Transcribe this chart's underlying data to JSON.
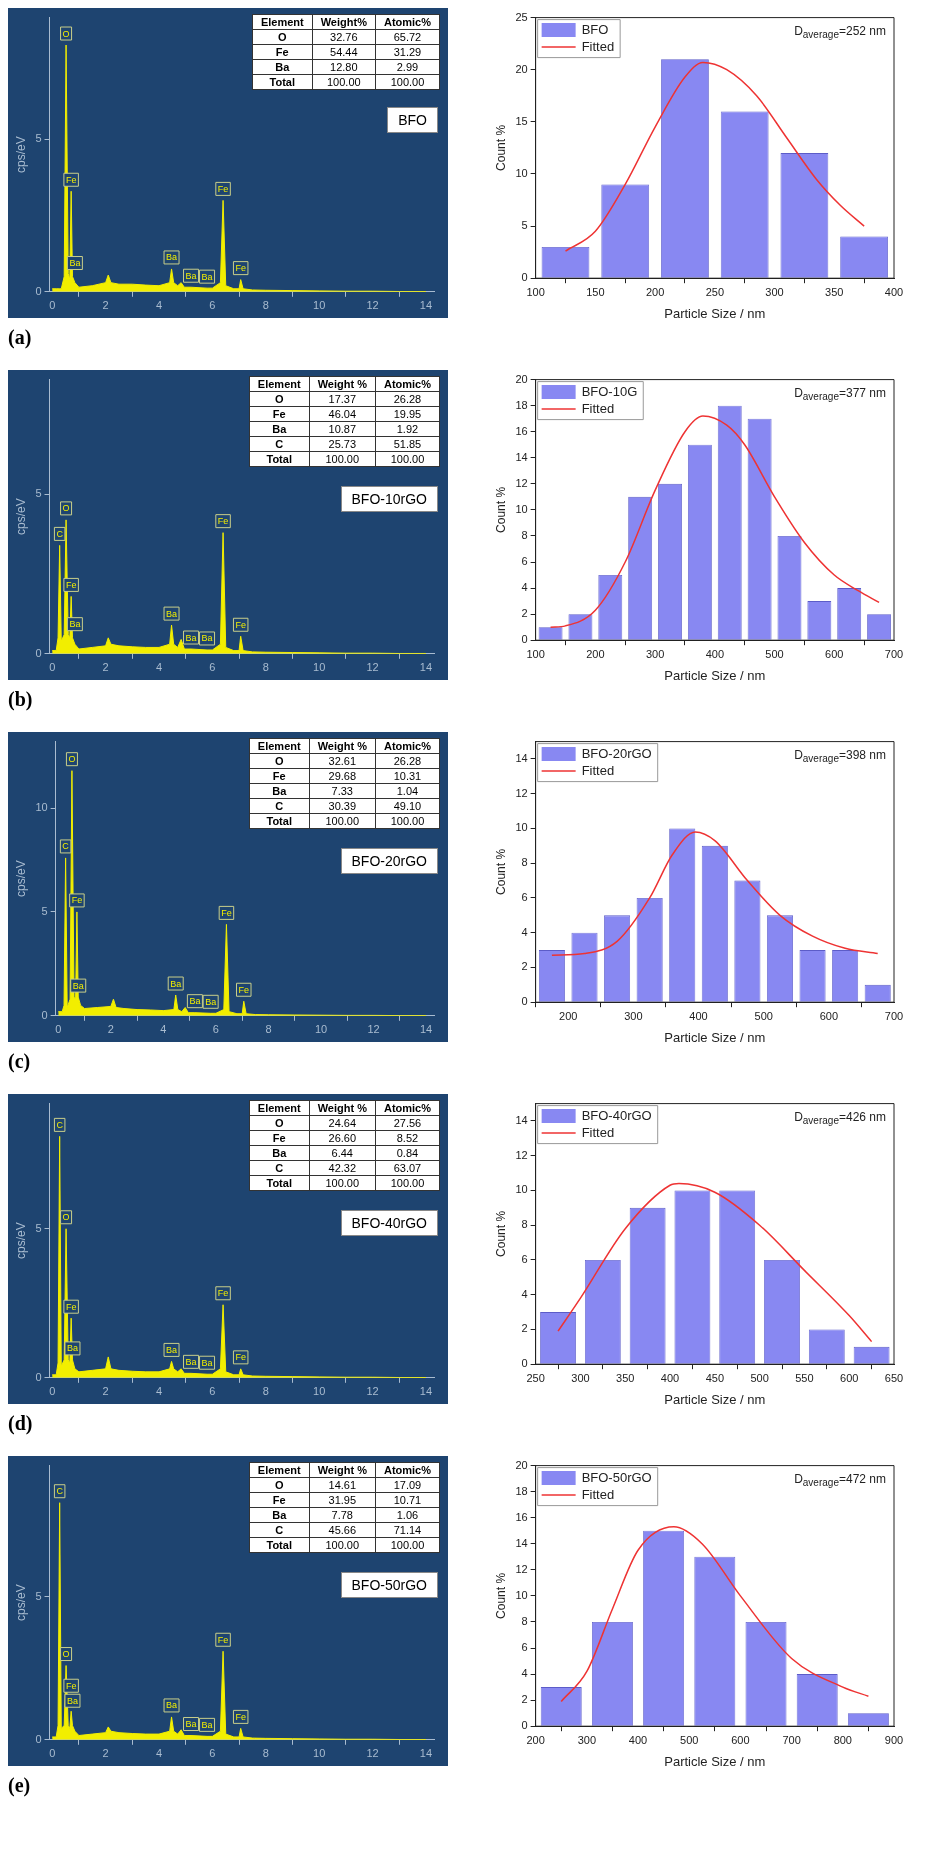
{
  "chart_data": [
    {
      "type": "area",
      "marker": "none",
      "ylabel": "cps/eV",
      "xlim": [
        -0.1,
        14.3
      ],
      "xticks": [
        0,
        2,
        4,
        6,
        8,
        10,
        12,
        14
      ],
      "ylim": [
        0,
        9
      ],
      "yticks": [
        0,
        5
      ],
      "x": [
        0,
        0.15,
        0.22,
        0.28,
        0.34,
        0.45,
        0.52,
        0.6,
        0.66,
        0.71,
        0.76,
        0.85,
        1.0,
        1.5,
        2.0,
        2.1,
        2.2,
        2.5,
        3.0,
        3.5,
        4.0,
        4.4,
        4.47,
        4.55,
        4.7,
        4.83,
        4.95,
        5.2,
        5.8,
        6.0,
        6.3,
        6.4,
        6.5,
        6.8,
        7.0,
        7.06,
        7.15,
        7.5,
        8,
        9,
        10,
        11,
        12,
        13,
        14
      ],
      "series": [
        {
          "color": "#f2ee00",
          "values": [
            0.1,
            0.1,
            0.1,
            0.1,
            0.1,
            0.5,
            8.1,
            0.6,
            0.4,
            3.3,
            0.5,
            0.3,
            0.15,
            0.2,
            0.3,
            0.55,
            0.3,
            0.25,
            0.25,
            0.22,
            0.2,
            0.3,
            0.75,
            0.3,
            0.2,
            0.3,
            0.15,
            0.15,
            0.12,
            0.12,
            0.3,
            3.0,
            0.2,
            0.1,
            0.1,
            0.4,
            0.1,
            0.06,
            0.05,
            0.04,
            0.03,
            0.02,
            0.02,
            0.01,
            0.01
          ]
        }
      ],
      "annotations": [
        {
          "text": "O",
          "x": 0.52,
          "y": 8.1
        },
        {
          "text": "Fe",
          "x": 0.71,
          "y": 3.3
        },
        {
          "text": "Ba",
          "x": 0.85,
          "y": 0.3
        },
        {
          "text": "Ba",
          "x": 4.47,
          "y": 0.75
        },
        {
          "text": "Ba",
          "x": 5.2,
          "y": 0.15
        },
        {
          "text": "Ba",
          "x": 5.8,
          "y": 0.12
        },
        {
          "text": "Fe",
          "x": 6.4,
          "y": 3.0
        },
        {
          "text": "Fe",
          "x": 7.06,
          "y": 0.4
        },
        "Element",
        "Weight%",
        "Atomic%",
        "O",
        "32.76",
        "65.72",
        "Fe",
        "54.44",
        "31.29",
        "Ba",
        "12.80",
        "2.99",
        "Total",
        "100.00",
        "100.00",
        "BFO",
        "(a)"
      ]
    },
    {
      "type": "histogram",
      "marker": "none",
      "xlabel": "Particle Size / nm",
      "ylabel": "Count %",
      "legend": "top left",
      "bins": [
        100,
        150,
        200,
        250,
        300,
        350,
        400
      ],
      "xlim": [
        100,
        400
      ],
      "xticks": [
        100,
        150,
        200,
        250,
        300,
        350,
        400
      ],
      "ylim": [
        0,
        25
      ],
      "yticks": [
        0,
        5,
        10,
        15,
        20,
        25
      ],
      "series": [
        {
          "name": "BFO",
          "color": "#8888f2",
          "values": [
            3,
            9,
            21,
            16,
            12,
            4
          ]
        },
        {
          "name": "Fitted",
          "type": "line",
          "color": "#ee3333",
          "x": [
            125,
            150,
            175,
            200,
            225,
            240,
            260,
            285,
            310,
            335,
            355,
            375
          ],
          "values": [
            2.6,
            4.5,
            9,
            14.5,
            19.3,
            20.7,
            20,
            17.5,
            13.5,
            9.5,
            7,
            5
          ]
        }
      ],
      "annotations": [
        "D$_{average}$=252 nm"
      ]
    },
    {
      "type": "area",
      "marker": "none",
      "ylabel": "cps/eV",
      "xlim": [
        -0.1,
        14.3
      ],
      "xticks": [
        0,
        2,
        4,
        6,
        8,
        10,
        12,
        14
      ],
      "ylim": [
        0,
        8.6
      ],
      "yticks": [
        0,
        5
      ],
      "x": [
        0,
        0.15,
        0.22,
        0.28,
        0.34,
        0.45,
        0.52,
        0.6,
        0.66,
        0.71,
        0.76,
        0.85,
        1.0,
        1.5,
        2.0,
        2.1,
        2.2,
        2.5,
        3.0,
        3.5,
        4.0,
        4.4,
        4.47,
        4.55,
        4.7,
        4.83,
        4.95,
        5.2,
        5.8,
        6.0,
        6.3,
        6.4,
        6.5,
        6.8,
        7.0,
        7.06,
        7.15,
        7.5,
        8,
        9,
        10,
        11,
        12,
        13,
        14
      ],
      "series": [
        {
          "color": "#f2ee00",
          "values": [
            0.1,
            0.1,
            0.5,
            3.4,
            0.4,
            0.6,
            4.2,
            0.6,
            0.5,
            1.8,
            0.5,
            0.3,
            0.15,
            0.2,
            0.25,
            0.5,
            0.3,
            0.25,
            0.22,
            0.2,
            0.2,
            0.3,
            0.9,
            0.3,
            0.2,
            0.45,
            0.15,
            0.15,
            0.12,
            0.12,
            0.3,
            3.8,
            0.2,
            0.1,
            0.1,
            0.55,
            0.1,
            0.06,
            0.05,
            0.04,
            0.03,
            0.02,
            0.02,
            0.01,
            0.01
          ]
        }
      ],
      "annotations": [
        {
          "text": "C",
          "x": 0.28,
          "y": 3.4
        },
        {
          "text": "O",
          "x": 0.52,
          "y": 4.2
        },
        {
          "text": "Fe",
          "x": 0.71,
          "y": 1.8
        },
        {
          "text": "Ba",
          "x": 0.85,
          "y": 0.3
        },
        {
          "text": "Ba",
          "x": 4.47,
          "y": 0.9
        },
        {
          "text": "Ba",
          "x": 5.2,
          "y": 0.15
        },
        {
          "text": "Ba",
          "x": 5.8,
          "y": 0.12
        },
        {
          "text": "Fe",
          "x": 6.4,
          "y": 3.8
        },
        {
          "text": "Fe",
          "x": 7.06,
          "y": 0.55
        },
        "Element",
        "Weight %",
        "Atomic%",
        "O",
        "17.37",
        "26.28",
        "Fe",
        "46.04",
        "19.95",
        "Ba",
        "10.87",
        "1.92",
        "C",
        "25.73",
        "51.85",
        "Total",
        "100.00",
        "100.00",
        "BFO-10rGO",
        "(b)"
      ]
    },
    {
      "type": "histogram",
      "marker": "none",
      "xlabel": "Particle Size / nm",
      "ylabel": "Count %",
      "legend": "top left",
      "bins": [
        100,
        150,
        200,
        250,
        300,
        350,
        400,
        450,
        500,
        550,
        600,
        650,
        700
      ],
      "xlim": [
        100,
        700
      ],
      "xticks": [
        100,
        200,
        300,
        400,
        500,
        600,
        700
      ],
      "ylim": [
        0,
        20
      ],
      "yticks": [
        0,
        2,
        4,
        6,
        8,
        10,
        12,
        14,
        16,
        18,
        20
      ],
      "series": [
        {
          "name": "BFO-10G",
          "color": "#8888f2",
          "values": [
            1,
            2,
            5,
            11,
            12,
            15,
            18,
            17,
            8,
            3,
            4,
            2
          ]
        },
        {
          "name": "Fitted",
          "type": "line",
          "color": "#ee3333",
          "x": [
            125,
            150,
            200,
            250,
            300,
            350,
            380,
            420,
            450,
            500,
            550,
            600,
            640,
            675
          ],
          "values": [
            1.0,
            1.1,
            2.3,
            6,
            11.5,
            16,
            17.2,
            16.5,
            15,
            11,
            7.5,
            5,
            3.8,
            2.9
          ]
        }
      ],
      "annotations": [
        "D$_{average}$=377 nm"
      ]
    },
    {
      "type": "area",
      "marker": "none",
      "ylabel": "cps/eV",
      "xlim": [
        -0.1,
        14.3
      ],
      "xticks": [
        0,
        2,
        4,
        6,
        8,
        10,
        12,
        14
      ],
      "ylim": [
        0,
        13.2
      ],
      "yticks": [
        0,
        5,
        10
      ],
      "x": [
        0,
        0.15,
        0.22,
        0.28,
        0.34,
        0.45,
        0.52,
        0.6,
        0.66,
        0.71,
        0.76,
        0.85,
        1.0,
        1.5,
        2.0,
        2.1,
        2.2,
        2.5,
        3.0,
        3.5,
        4.0,
        4.4,
        4.47,
        4.55,
        4.7,
        4.83,
        4.95,
        5.2,
        5.8,
        6.0,
        6.3,
        6.4,
        6.5,
        6.8,
        7.0,
        7.06,
        7.15,
        7.5,
        8,
        9,
        10,
        11,
        12,
        13,
        14
      ],
      "series": [
        {
          "color": "#f2ee00",
          "values": [
            0.2,
            0.2,
            0.5,
            7.6,
            0.4,
            0.8,
            11.8,
            0.9,
            0.8,
            5.0,
            0.9,
            0.5,
            0.35,
            0.4,
            0.45,
            0.8,
            0.4,
            0.35,
            0.3,
            0.28,
            0.25,
            0.3,
            1.0,
            0.3,
            0.2,
            0.4,
            0.15,
            0.15,
            0.12,
            0.12,
            0.3,
            4.4,
            0.2,
            0.1,
            0.1,
            0.7,
            0.1,
            0.06,
            0.05,
            0.04,
            0.03,
            0.02,
            0.02,
            0.01,
            0.01
          ]
        }
      ],
      "annotations": [
        {
          "text": "C",
          "x": 0.28,
          "y": 7.6
        },
        {
          "text": "O",
          "x": 0.52,
          "y": 11.8
        },
        {
          "text": "Fe",
          "x": 0.71,
          "y": 5.0
        },
        {
          "text": "Ba",
          "x": 0.76,
          "y": 0.9
        },
        {
          "text": "Ba",
          "x": 4.47,
          "y": 1.0
        },
        {
          "text": "Ba",
          "x": 5.2,
          "y": 0.15
        },
        {
          "text": "Ba",
          "x": 5.8,
          "y": 0.12
        },
        {
          "text": "Fe",
          "x": 6.4,
          "y": 4.4
        },
        {
          "text": "Fe",
          "x": 7.06,
          "y": 0.7
        },
        "Element",
        "Weight %",
        "Atomic%",
        "O",
        "32.61",
        "26.28",
        "Fe",
        "29.68",
        "10.31",
        "Ba",
        "7.33",
        "1.04",
        "C",
        "30.39",
        "49.10",
        "Total",
        "100.00",
        "100.00",
        "BFO-20rGO",
        "(c)"
      ]
    },
    {
      "type": "histogram",
      "marker": "none",
      "xlabel": "Particle Size / nm",
      "ylabel": "Count %",
      "legend": "top left",
      "bins": [
        150,
        200,
        250,
        300,
        350,
        400,
        450,
        500,
        550,
        600,
        650,
        700
      ],
      "xlim": [
        150,
        700
      ],
      "xticks": [
        200,
        300,
        400,
        500,
        600,
        700
      ],
      "ylim": [
        0,
        15
      ],
      "yticks": [
        0,
        2,
        4,
        6,
        8,
        10,
        12,
        14
      ],
      "series": [
        {
          "name": "BFO-20rGO",
          "color": "#8888f2",
          "values": [
            3,
            4,
            5,
            6,
            10,
            9,
            7,
            5,
            3,
            3,
            1
          ]
        },
        {
          "name": "Fitted",
          "type": "line",
          "color": "#ee3333",
          "x": [
            175,
            225,
            275,
            325,
            360,
            395,
            425,
            475,
            525,
            575,
            625,
            675
          ],
          "values": [
            2.7,
            2.8,
            3.5,
            6,
            8.5,
            9.8,
            9.3,
            7,
            5,
            3.8,
            3.1,
            2.8
          ]
        }
      ],
      "annotations": [
        "D$_{average}$=398 nm"
      ]
    },
    {
      "type": "area",
      "marker": "none",
      "ylabel": "cps/eV",
      "xlim": [
        -0.1,
        14.3
      ],
      "xticks": [
        0,
        2,
        4,
        6,
        8,
        10,
        12,
        14
      ],
      "ylim": [
        0,
        9.2
      ],
      "yticks": [
        0,
        5
      ],
      "x": [
        0,
        0.15,
        0.22,
        0.28,
        0.34,
        0.45,
        0.52,
        0.6,
        0.66,
        0.71,
        0.76,
        0.85,
        1.0,
        1.5,
        2.0,
        2.1,
        2.2,
        2.5,
        3.0,
        3.5,
        4.0,
        4.4,
        4.47,
        4.55,
        4.7,
        4.83,
        4.95,
        5.2,
        5.8,
        6.0,
        6.3,
        6.4,
        6.5,
        6.8,
        7.0,
        7.06,
        7.15,
        7.5,
        8,
        9,
        10,
        11,
        12,
        13,
        14
      ],
      "series": [
        {
          "color": "#f2ee00",
          "values": [
            0.1,
            0.1,
            0.5,
            8.1,
            0.4,
            0.6,
            5.0,
            0.6,
            0.5,
            2.0,
            0.6,
            0.3,
            0.2,
            0.25,
            0.3,
            0.7,
            0.3,
            0.25,
            0.22,
            0.2,
            0.2,
            0.3,
            0.55,
            0.3,
            0.2,
            0.3,
            0.15,
            0.15,
            0.12,
            0.12,
            0.3,
            2.45,
            0.2,
            0.1,
            0.1,
            0.3,
            0.1,
            0.06,
            0.05,
            0.04,
            0.03,
            0.02,
            0.02,
            0.01,
            0.01
          ]
        }
      ],
      "annotations": [
        {
          "text": "C",
          "x": 0.28,
          "y": 8.1
        },
        {
          "text": "O",
          "x": 0.52,
          "y": 5.0
        },
        {
          "text": "Fe",
          "x": 0.71,
          "y": 2.0
        },
        {
          "text": "Ba",
          "x": 0.76,
          "y": 0.6
        },
        {
          "text": "Ba",
          "x": 4.47,
          "y": 0.55
        },
        {
          "text": "Ba",
          "x": 5.2,
          "y": 0.15
        },
        {
          "text": "Ba",
          "x": 5.8,
          "y": 0.12
        },
        {
          "text": "Fe",
          "x": 6.4,
          "y": 2.45
        },
        {
          "text": "Fe",
          "x": 7.06,
          "y": 0.3
        },
        "Element",
        "Weight %",
        "Atomic%",
        "O",
        "24.64",
        "27.56",
        "Fe",
        "26.60",
        "8.52",
        "Ba",
        "6.44",
        "0.84",
        "C",
        "42.32",
        "63.07",
        "Total",
        "100.00",
        "100.00",
        "BFO-40rGO",
        "(d)"
      ]
    },
    {
      "type": "histogram",
      "marker": "none",
      "xlabel": "Particle Size / nm",
      "ylabel": "Count %",
      "legend": "top left",
      "bins": [
        250,
        300,
        350,
        400,
        450,
        500,
        550,
        600,
        650
      ],
      "xlim": [
        250,
        650
      ],
      "xticks": [
        250,
        300,
        350,
        400,
        450,
        500,
        550,
        600,
        650
      ],
      "ylim": [
        0,
        15
      ],
      "yticks": [
        0,
        2,
        4,
        6,
        8,
        10,
        12,
        14
      ],
      "series": [
        {
          "name": "BFO-40rGO",
          "color": "#8888f2",
          "values": [
            3,
            6,
            9,
            10,
            10,
            6,
            2,
            1
          ]
        },
        {
          "name": "Fitted",
          "type": "line",
          "color": "#ee3333",
          "x": [
            275,
            300,
            350,
            400,
            410,
            450,
            500,
            550,
            600,
            625
          ],
          "values": [
            1.9,
            3.8,
            7.8,
            10.3,
            10.4,
            9.9,
            8,
            5.4,
            2.8,
            1.3
          ]
        }
      ],
      "annotations": [
        "D$_{average}$=426 nm"
      ]
    },
    {
      "type": "area",
      "marker": "none",
      "ylabel": "cps/eV",
      "xlim": [
        -0.1,
        14.3
      ],
      "xticks": [
        0,
        2,
        4,
        6,
        8,
        10,
        12,
        14
      ],
      "ylim": [
        0,
        9.6
      ],
      "yticks": [
        0,
        5
      ],
      "x": [
        0,
        0.15,
        0.22,
        0.28,
        0.34,
        0.45,
        0.52,
        0.6,
        0.66,
        0.71,
        0.76,
        0.85,
        1.0,
        1.5,
        2.0,
        2.1,
        2.2,
        2.5,
        3.0,
        3.5,
        4.0,
        4.4,
        4.47,
        4.55,
        4.7,
        4.83,
        4.95,
        5.2,
        5.8,
        6.0,
        6.3,
        6.4,
        6.5,
        6.8,
        7.0,
        7.06,
        7.15,
        7.5,
        8,
        9,
        10,
        11,
        12,
        13,
        14
      ],
      "series": [
        {
          "color": "#f2ee00",
          "values": [
            0.1,
            0.1,
            0.5,
            8.3,
            0.4,
            0.5,
            2.6,
            0.5,
            0.4,
            1.0,
            0.5,
            0.3,
            0.15,
            0.2,
            0.25,
            0.45,
            0.3,
            0.25,
            0.22,
            0.2,
            0.2,
            0.3,
            0.8,
            0.3,
            0.2,
            0.35,
            0.15,
            0.15,
            0.12,
            0.12,
            0.3,
            3.1,
            0.2,
            0.1,
            0.1,
            0.4,
            0.1,
            0.06,
            0.05,
            0.04,
            0.03,
            0.02,
            0.02,
            0.01,
            0.01
          ]
        }
      ],
      "annotations": [
        {
          "text": "C",
          "x": 0.28,
          "y": 8.3
        },
        {
          "text": "O",
          "x": 0.52,
          "y": 2.6
        },
        {
          "text": "Ba",
          "x": 0.76,
          "y": 0.5
        },
        {
          "text": "Fe",
          "x": 0.71,
          "y": 1.0
        },
        {
          "text": "Ba",
          "x": 4.47,
          "y": 0.8
        },
        {
          "text": "Ba",
          "x": 5.2,
          "y": 0.15
        },
        {
          "text": "Ba",
          "x": 5.8,
          "y": 0.12
        },
        {
          "text": "Fe",
          "x": 6.4,
          "y": 3.1
        },
        {
          "text": "Fe",
          "x": 7.06,
          "y": 0.4
        },
        "Element",
        "Weight %",
        "Atomic%",
        "O",
        "14.61",
        "17.09",
        "Fe",
        "31.95",
        "10.71",
        "Ba",
        "7.78",
        "1.06",
        "C",
        "45.66",
        "71.14",
        "Total",
        "100.00",
        "100.00",
        "BFO-50rGO",
        "(e)"
      ]
    },
    {
      "type": "histogram",
      "marker": "none",
      "xlabel": "Particle Size / nm",
      "ylabel": "Count %",
      "legend": "top left",
      "bins": [
        200,
        300,
        400,
        500,
        600,
        700,
        800,
        900
      ],
      "xlim": [
        200,
        900
      ],
      "xticks": [
        200,
        300,
        400,
        500,
        600,
        700,
        800,
        900
      ],
      "ylim": [
        0,
        20
      ],
      "yticks": [
        0,
        2,
        4,
        6,
        8,
        10,
        12,
        14,
        16,
        18,
        20
      ],
      "series": [
        {
          "name": "BFO-50rGO",
          "color": "#8888f2",
          "values": [
            3,
            8,
            15,
            13,
            8,
            4,
            1
          ]
        },
        {
          "name": "Fitted",
          "type": "line",
          "color": "#ee3333",
          "x": [
            250,
            300,
            350,
            400,
            470,
            525,
            600,
            700,
            800,
            850
          ],
          "values": [
            1.9,
            4.2,
            9,
            13.5,
            15.3,
            14,
            10,
            5.2,
            3,
            2.3
          ]
        }
      ],
      "annotations": [
        "D$_{average}$=472 nm"
      ]
    }
  ]
}
